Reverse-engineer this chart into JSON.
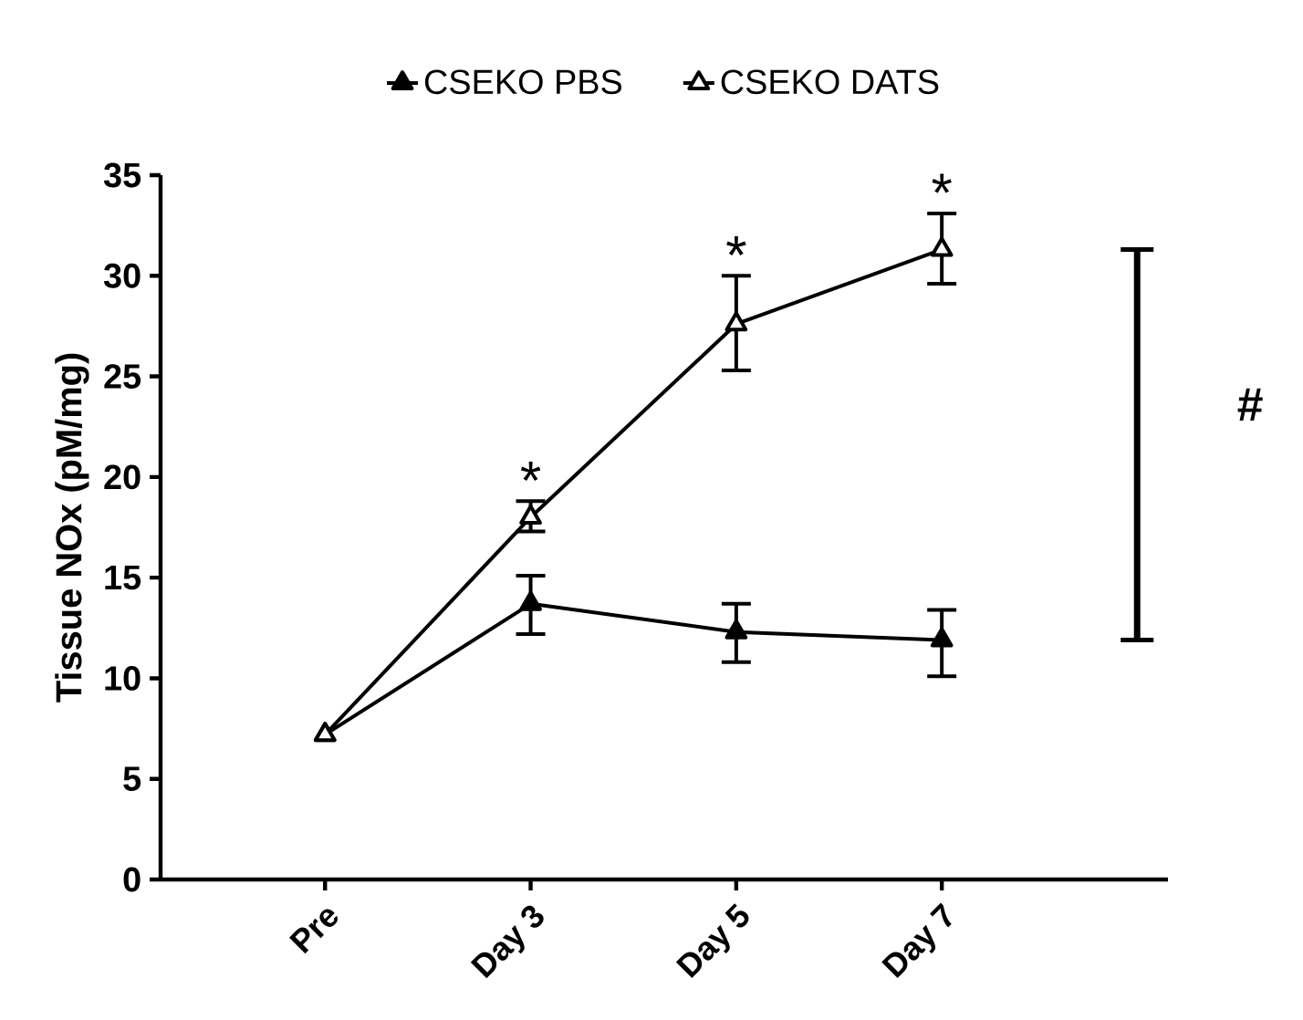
{
  "chart_data": {
    "type": "line",
    "ylabel": "Tissue NOx (pM/mg)",
    "categories": [
      "Pre",
      "Day 3",
      "Day 5",
      "Day 7"
    ],
    "ylim": [
      0,
      35
    ],
    "yticks": [
      0,
      5,
      10,
      15,
      20,
      25,
      30,
      35
    ],
    "legend": "top",
    "marker": "triangle",
    "line_style": "solid",
    "grid": false,
    "series": [
      {
        "name": "CSEKO PBS",
        "color": "#000000",
        "values": [
          7.2,
          13.7,
          12.3,
          11.9
        ],
        "errors": [
          null,
          [
            12.2,
            15.1
          ],
          [
            10.8,
            13.7
          ],
          [
            10.1,
            13.4
          ]
        ]
      },
      {
        "name": "CSEKO DATS",
        "color": "#000000",
        "values": [
          7.2,
          18.0,
          27.6,
          31.3
        ],
        "errors": [
          null,
          [
            17.3,
            18.8
          ],
          [
            25.3,
            30.0
          ],
          [
            29.6,
            33.1
          ]
        ]
      }
    ],
    "annotations": [
      "*",
      "*",
      "*",
      "#"
    ]
  }
}
